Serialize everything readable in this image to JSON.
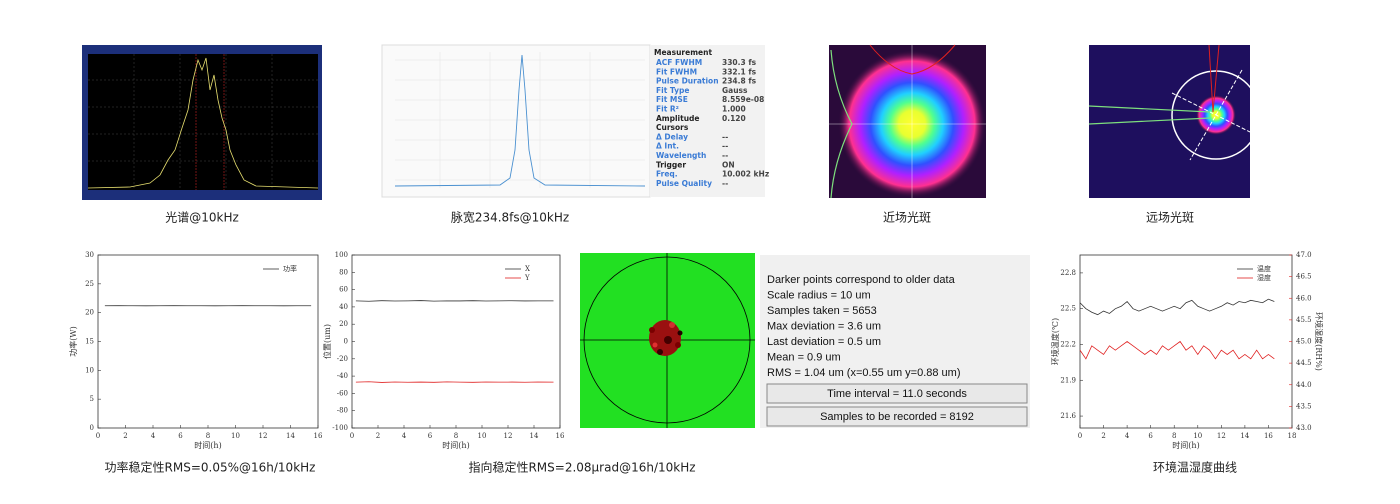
{
  "captions": {
    "spectrum": "光谱@10kHz",
    "pulse": "脉宽234.8fs@10kHz",
    "near": "近场光斑",
    "far": "远场光斑",
    "power": "功率稳定性RMS=0.05%@16h/10kHz",
    "pointing": "指向稳定性RMS=2.08μrad@16h/10kHz",
    "env": "环境温湿度曲线"
  },
  "measurement": {
    "title": "Measurement",
    "rows": [
      {
        "label": "ACF FWHM",
        "value": "330.3 fs",
        "color": "#3a7bd5"
      },
      {
        "label": "Fit FWHM",
        "value": "332.1 fs",
        "color": "#3a7bd5"
      },
      {
        "label": "Pulse Duration",
        "value": "234.8 fs",
        "color": "#3a7bd5"
      },
      {
        "label": "Fit Type",
        "value": "Gauss",
        "color": "#3a7bd5"
      },
      {
        "label": "Fit MSE",
        "value": "8.559e-08",
        "color": "#3a7bd5"
      },
      {
        "label": "Fit R²",
        "value": "1.000",
        "color": "#3a7bd5"
      },
      {
        "label": "Amplitude",
        "value": "0.120",
        "color": "#222"
      },
      {
        "label": "Cursors",
        "color": "#222"
      },
      {
        "label": "  Δ Delay",
        "value": "--",
        "color": "#3a7bd5"
      },
      {
        "label": "  Δ Int.",
        "value": "--",
        "color": "#3a7bd5"
      },
      {
        "label": "Wavelength",
        "value": "--",
        "color": "#3a7bd5"
      },
      {
        "label": "Trigger",
        "value": "ON",
        "color": "#222"
      },
      {
        "label": "  Freq.",
        "value": "10.002 kHz",
        "color": "#3a7bd5"
      },
      {
        "label": "Pulse Quality",
        "value": "--",
        "color": "#3a7bd5"
      }
    ]
  },
  "pointing_info": {
    "lines": [
      "Darker points correspond to older data",
      "Scale radius = 10 um",
      "Samples taken = 5653",
      "Max deviation = 3.6 um",
      "Last deviation = 0.5 um",
      "Mean = 0.9 um",
      "RMS = 1.04 um (x=0.55 um y=0.88 um)"
    ],
    "buttons": [
      "Time interval = 11.0 seconds",
      "Samples to be recorded = 8192"
    ]
  },
  "chart_data": [
    {
      "type": "line",
      "xlabel": "时间(h)",
      "ylabel": "功率(W)",
      "xlim": [
        0,
        16
      ],
      "xticks": [
        0,
        2,
        4,
        6,
        8,
        10,
        12,
        14,
        16
      ],
      "ylim": [
        0,
        30
      ],
      "yticks": [
        0,
        5,
        10,
        15,
        20,
        25,
        30
      ],
      "legend": "upper right",
      "x": [
        0.5,
        1.5,
        2.5,
        3.5,
        4.5,
        5.5,
        6.5,
        7.5,
        8.5,
        9.5,
        10.5,
        11.5,
        12.5,
        13.5,
        14.5,
        15.5
      ],
      "series": [
        {
          "name": "功率",
          "color": "#333333",
          "values": [
            21.2,
            21.21,
            21.2,
            21.19,
            21.2,
            21.21,
            21.2,
            21.2,
            21.19,
            21.2,
            21.21,
            21.2,
            21.2,
            21.19,
            21.2,
            21.2
          ]
        }
      ]
    },
    {
      "type": "line",
      "xlabel": "时间(h)",
      "ylabel": "位置(um)",
      "xlim": [
        0,
        16
      ],
      "xticks": [
        0,
        2,
        4,
        6,
        8,
        10,
        12,
        14,
        16
      ],
      "ylim": [
        -100,
        100
      ],
      "yticks": [
        -100,
        -80,
        -60,
        -40,
        -20,
        0,
        20,
        40,
        60,
        80,
        100
      ],
      "legend": "upper right",
      "x": [
        0.3,
        1.3,
        2.3,
        3.3,
        4.3,
        5.3,
        6.3,
        7.3,
        8.3,
        9.3,
        10.3,
        11.3,
        12.3,
        13.3,
        14.3,
        15.5
      ],
      "series": [
        {
          "name": "X",
          "color": "#333333",
          "values": [
            47,
            46.5,
            47.2,
            46.8,
            47,
            47.3,
            46.7,
            47,
            46.9,
            47.2,
            46.8,
            47,
            47.1,
            46.9,
            47,
            47
          ]
        },
        {
          "name": "Y",
          "color": "#e02020",
          "values": [
            -47,
            -46.5,
            -47.3,
            -46.8,
            -47.1,
            -46.9,
            -47.2,
            -46.7,
            -47,
            -47.2,
            -46.8,
            -47,
            -46.9,
            -47.1,
            -46.8,
            -47
          ]
        }
      ]
    },
    {
      "type": "line",
      "xlabel": "时间(h)",
      "ylabel": "环境温度(℃)",
      "y2label": "环境湿度(RH%)",
      "xlim": [
        0,
        18
      ],
      "xticks": [
        0,
        2,
        4,
        6,
        8,
        10,
        12,
        14,
        16,
        18
      ],
      "ylim": [
        21.5,
        22.95
      ],
      "yticks": [
        21.6,
        21.9,
        22.2,
        22.5,
        22.8
      ],
      "y2lim": [
        43,
        47
      ],
      "y2ticks": [
        {
          "value": 43,
          "label": "43.0"
        },
        43.5,
        {
          "value": 44,
          "label": "44.0"
        },
        44.5,
        {
          "value": 45,
          "label": "45.0"
        },
        45.5,
        {
          "value": 46,
          "label": "46.0"
        },
        46.5,
        {
          "value": 47,
          "label": "47.0"
        }
      ],
      "legend": "upper right",
      "x": [
        0,
        0.5,
        1,
        1.5,
        2,
        2.5,
        3,
        3.5,
        4,
        4.5,
        5,
        5.5,
        6,
        6.5,
        7,
        7.5,
        8,
        8.5,
        9,
        9.5,
        10,
        10.5,
        11,
        11.5,
        12,
        12.5,
        13,
        13.5,
        14,
        14.5,
        15,
        15.5,
        16,
        16.5
      ],
      "series": [
        {
          "name": "温度",
          "color": "#333333",
          "values": [
            22.55,
            22.5,
            22.47,
            22.45,
            22.48,
            22.46,
            22.5,
            22.52,
            22.56,
            22.5,
            22.48,
            22.5,
            22.52,
            22.5,
            22.48,
            22.5,
            22.52,
            22.5,
            22.55,
            22.57,
            22.52,
            22.5,
            22.48,
            22.5,
            22.52,
            22.55,
            22.53,
            22.56,
            22.55,
            22.57,
            22.56,
            22.55,
            22.58,
            22.56
          ]
        },
        {
          "name": "湿度",
          "color": "#e02020",
          "axis": "y2",
          "values": [
            44.8,
            44.6,
            44.9,
            44.8,
            44.7,
            44.9,
            44.8,
            44.9,
            45.0,
            44.9,
            44.8,
            44.7,
            44.8,
            44.7,
            44.9,
            44.8,
            44.9,
            45.0,
            44.8,
            44.9,
            44.7,
            44.9,
            44.8,
            44.6,
            44.8,
            44.7,
            44.8,
            44.6,
            44.7,
            44.6,
            44.8,
            44.6,
            44.7,
            44.6
          ]
        }
      ]
    }
  ]
}
